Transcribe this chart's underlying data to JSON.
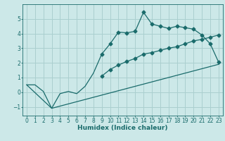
{
  "xlabel": "Humidex (Indice chaleur)",
  "bg_color": "#cce8e8",
  "line_color": "#1a6b6b",
  "grid_color": "#aacfcf",
  "xlim": [
    -0.5,
    23.5
  ],
  "ylim": [
    -1.6,
    6.0
  ],
  "yticks": [
    -1,
    0,
    1,
    2,
    3,
    4,
    5
  ],
  "xticks": [
    0,
    1,
    2,
    3,
    4,
    5,
    6,
    7,
    8,
    9,
    10,
    11,
    12,
    13,
    14,
    15,
    16,
    17,
    18,
    19,
    20,
    21,
    22,
    23
  ],
  "line1_x": [
    0,
    1,
    2,
    3,
    4,
    5,
    6,
    7,
    8,
    9,
    10,
    11,
    12,
    13,
    14,
    15,
    16,
    17,
    18,
    19,
    20,
    21,
    22,
    23
  ],
  "line1_y": [
    0.5,
    0.5,
    0.05,
    -1.1,
    -0.1,
    0.05,
    -0.1,
    0.4,
    1.3,
    2.6,
    3.3,
    4.1,
    4.05,
    4.15,
    5.45,
    4.65,
    4.5,
    4.35,
    4.5,
    4.4,
    4.3,
    3.9,
    3.3,
    2.05
  ],
  "line1_markers_from": 9,
  "line2_x": [
    9,
    10,
    11,
    12,
    13,
    14,
    15,
    16,
    17,
    18,
    19,
    20,
    21,
    22,
    23
  ],
  "line2_y": [
    1.1,
    1.55,
    1.85,
    2.1,
    2.3,
    2.6,
    2.7,
    2.85,
    3.0,
    3.1,
    3.3,
    3.5,
    3.6,
    3.75,
    3.9
  ],
  "line3_x": [
    0,
    3,
    23
  ],
  "line3_y": [
    0.5,
    -1.1,
    1.9
  ]
}
